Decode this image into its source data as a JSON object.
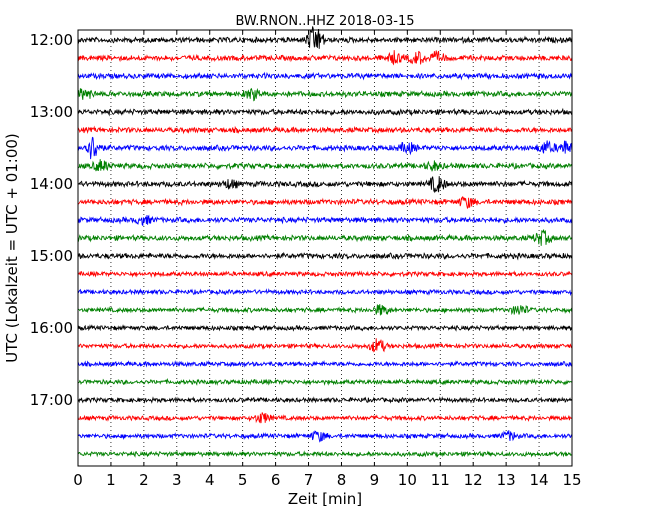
{
  "chart_data": {
    "type": "line",
    "title": "BW.RNON..HHZ 2018-03-15",
    "xlabel": "Zeit  [min]",
    "ylabel": "UTC (Lokalzeit = UTC + 01:00)",
    "xlim": [
      0,
      15
    ],
    "x_ticks": [
      "0",
      "1",
      "2",
      "3",
      "4",
      "5",
      "6",
      "7",
      "8",
      "9",
      "10",
      "11",
      "12",
      "13",
      "14",
      "15"
    ],
    "y_tick_labels": [
      "12:00",
      "13:00",
      "14:00",
      "15:00",
      "16:00",
      "17:00"
    ],
    "grid": "vertical dotted",
    "trace_interval_min": 15,
    "color_cycle": [
      "#000000",
      "#ff0000",
      "#0000ff",
      "#008000"
    ],
    "traces": [
      {
        "start": "12:00",
        "color": "#000000",
        "amp": 3,
        "events": [
          {
            "x": 7.2,
            "amp": 14
          }
        ]
      },
      {
        "start": "12:15",
        "color": "#ff0000",
        "amp": 3,
        "events": [
          {
            "x": 9.6,
            "amp": 5
          },
          {
            "x": 10.3,
            "amp": 6
          },
          {
            "x": 10.9,
            "amp": 5
          }
        ]
      },
      {
        "start": "12:30",
        "color": "#0000ff",
        "amp": 3,
        "events": []
      },
      {
        "start": "12:45",
        "color": "#008000",
        "amp": 3,
        "events": [
          {
            "x": 0.2,
            "amp": 5
          },
          {
            "x": 5.3,
            "amp": 5
          }
        ]
      },
      {
        "start": "13:00",
        "color": "#000000",
        "amp": 3,
        "events": []
      },
      {
        "start": "13:15",
        "color": "#ff0000",
        "amp": 3,
        "events": []
      },
      {
        "start": "13:30",
        "color": "#0000ff",
        "amp": 3,
        "events": [
          {
            "x": 0.45,
            "amp": 12
          },
          {
            "x": 10,
            "amp": 5
          },
          {
            "x": 14.2,
            "amp": 6
          },
          {
            "x": 14.8,
            "amp": 6
          }
        ]
      },
      {
        "start": "13:45",
        "color": "#008000",
        "amp": 3,
        "events": [
          {
            "x": 0.7,
            "amp": 5
          },
          {
            "x": 10.8,
            "amp": 4
          }
        ]
      },
      {
        "start": "14:00",
        "color": "#000000",
        "amp": 3,
        "events": [
          {
            "x": 10.9,
            "amp": 8
          },
          {
            "x": 4.6,
            "amp": 4
          }
        ]
      },
      {
        "start": "14:15",
        "color": "#ff0000",
        "amp": 3,
        "events": [
          {
            "x": 11.8,
            "amp": 5
          }
        ]
      },
      {
        "start": "14:30",
        "color": "#0000ff",
        "amp": 3,
        "events": [
          {
            "x": 2,
            "amp": 4
          }
        ]
      },
      {
        "start": "14:45",
        "color": "#008000",
        "amp": 3,
        "events": [
          {
            "x": 14.1,
            "amp": 7
          }
        ]
      },
      {
        "start": "15:00",
        "color": "#000000",
        "amp": 3,
        "events": []
      },
      {
        "start": "15:15",
        "color": "#ff0000",
        "amp": 2.5,
        "events": []
      },
      {
        "start": "15:30",
        "color": "#0000ff",
        "amp": 2.5,
        "events": []
      },
      {
        "start": "15:45",
        "color": "#008000",
        "amp": 2.5,
        "events": [
          {
            "x": 9.2,
            "amp": 5
          },
          {
            "x": 13.4,
            "amp": 5
          }
        ]
      },
      {
        "start": "16:00",
        "color": "#000000",
        "amp": 2.5,
        "events": []
      },
      {
        "start": "16:15",
        "color": "#ff0000",
        "amp": 2.5,
        "events": [
          {
            "x": 9.1,
            "amp": 7
          }
        ]
      },
      {
        "start": "16:30",
        "color": "#0000ff",
        "amp": 2.5,
        "events": []
      },
      {
        "start": "16:45",
        "color": "#008000",
        "amp": 2.5,
        "events": []
      },
      {
        "start": "17:00",
        "color": "#000000",
        "amp": 2.5,
        "events": []
      },
      {
        "start": "17:15",
        "color": "#ff0000",
        "amp": 2.5,
        "events": [
          {
            "x": 5.6,
            "amp": 5
          }
        ]
      },
      {
        "start": "17:30",
        "color": "#0000ff",
        "amp": 2.5,
        "events": [
          {
            "x": 7.3,
            "amp": 5
          },
          {
            "x": 13.1,
            "amp": 4
          }
        ]
      },
      {
        "start": "17:45",
        "color": "#008000",
        "amp": 2.5,
        "events": []
      }
    ]
  }
}
